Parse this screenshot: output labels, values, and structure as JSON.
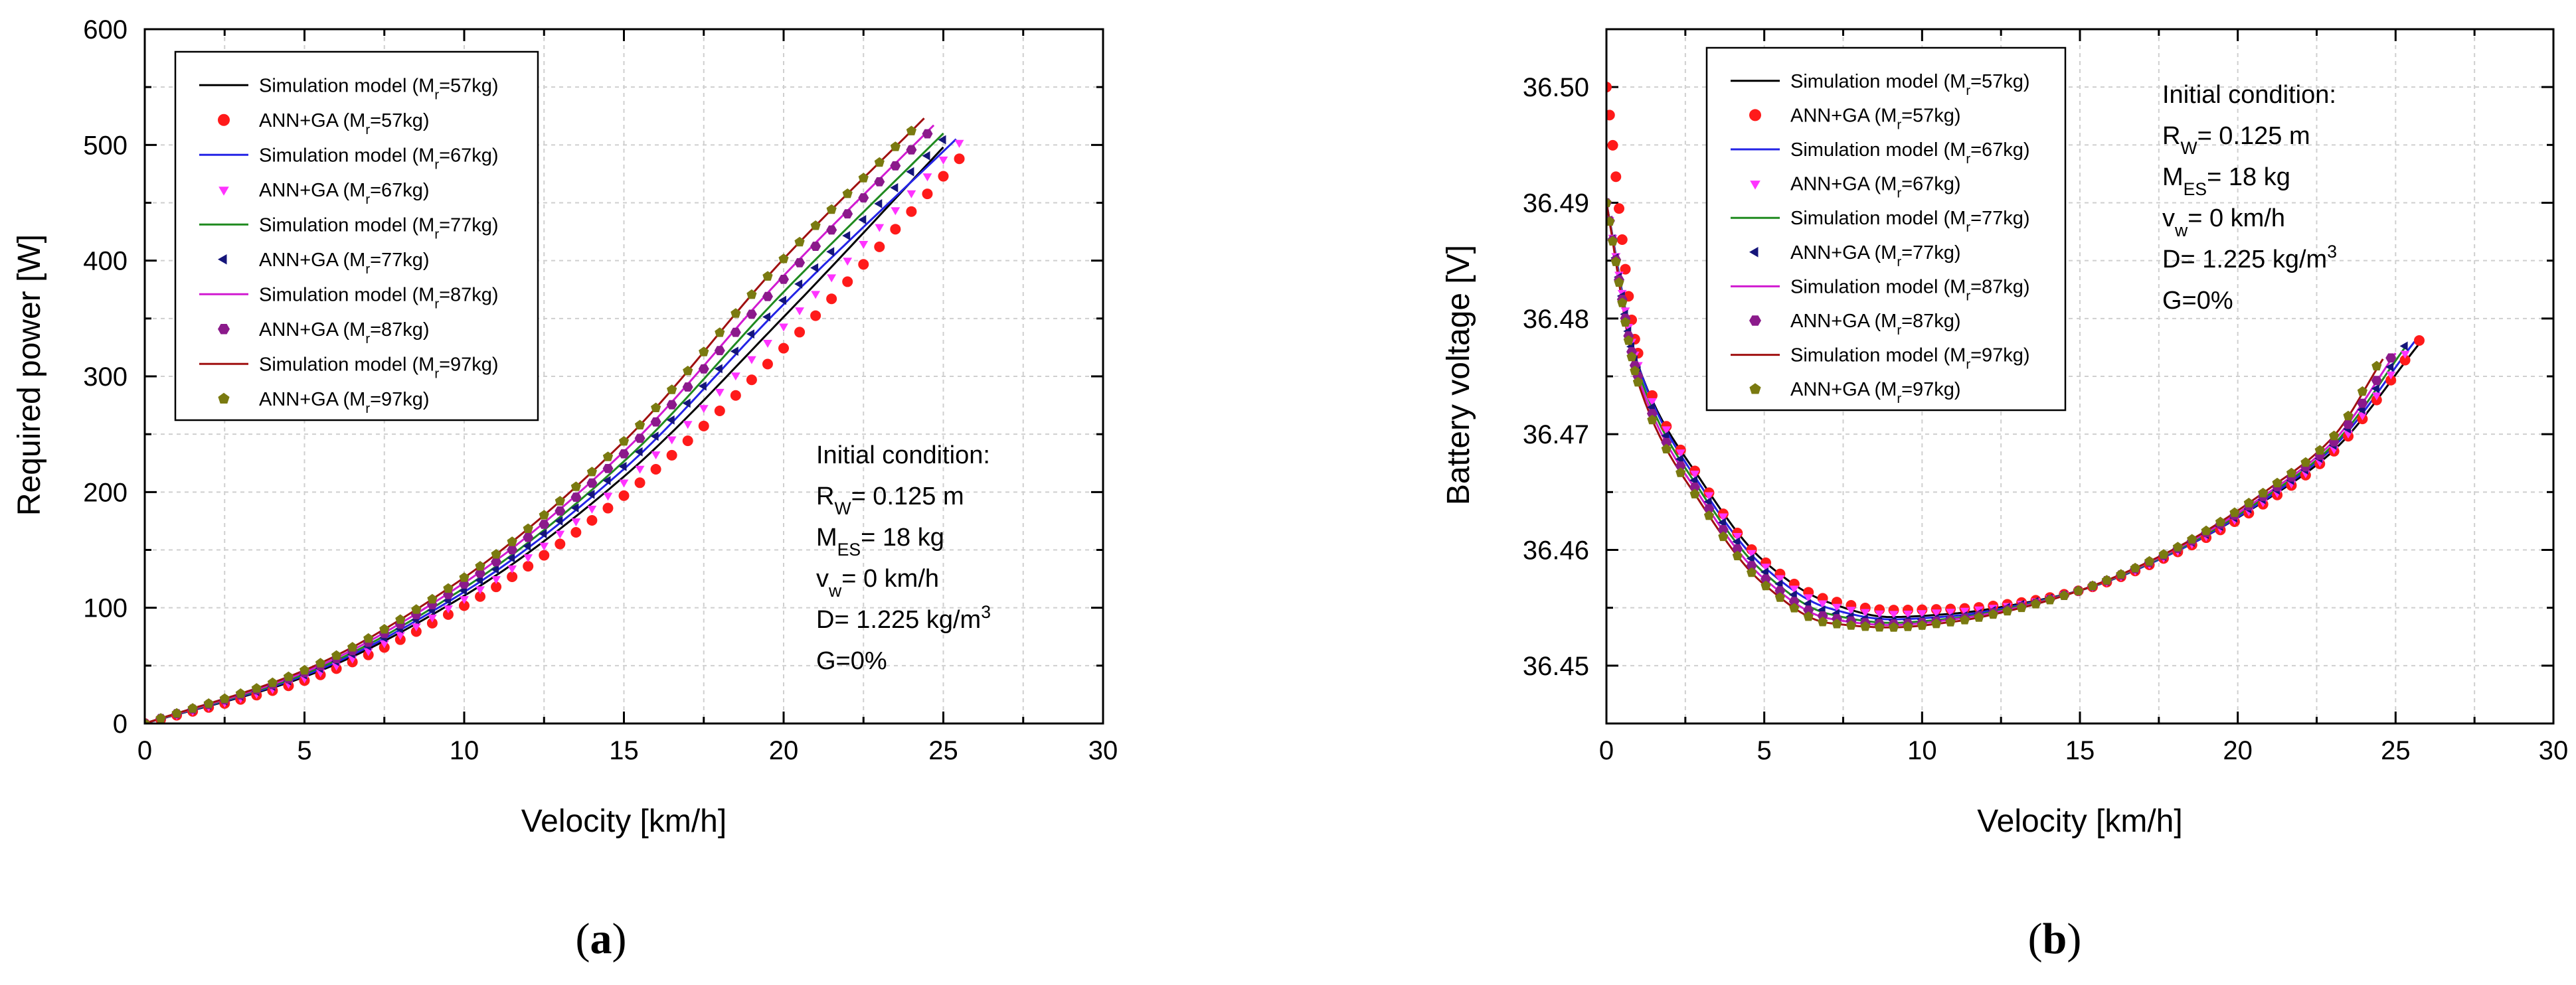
{
  "chart_data": [
    {
      "type": "line",
      "caption_letter": "a",
      "xlabel": "Velocity [km/h]",
      "ylabel": "Required power [W]",
      "xlim": [
        0,
        30
      ],
      "ylim": [
        0,
        600
      ],
      "xticks": [
        "0",
        "5",
        "10",
        "15",
        "20",
        "25",
        "30"
      ],
      "yticks": [
        "0",
        "100",
        "200",
        "300",
        "400",
        "500",
        "600"
      ],
      "grid": true,
      "legend_position": "top-left",
      "annotation_position": "bottom-right",
      "annotation": [
        {
          "main": "Initial condition:"
        },
        {
          "main": "R",
          "sub": "W",
          "rest": "= 0.125 m"
        },
        {
          "main": "M",
          "sub": "ES",
          "rest": "= 18 kg"
        },
        {
          "main": "v",
          "sub": "w",
          "rest": "= 0 km/h"
        },
        {
          "main": "D= 1.225 kg/m",
          "sup": "3"
        },
        {
          "main": "G=0%"
        }
      ],
      "legend": [
        {
          "kind": "line",
          "label": "Simulation model (M",
          "sub": "r",
          "rest": "=57kg)",
          "color": "#000000"
        },
        {
          "kind": "marker",
          "marker": "circle",
          "label": "ANN+GA (M",
          "sub": "r",
          "rest": "=57kg)",
          "color": "#ff1a1a"
        },
        {
          "kind": "line",
          "label": "Simulation model (M",
          "sub": "r",
          "rest": "=67kg)",
          "color": "#2323e6"
        },
        {
          "kind": "marker",
          "marker": "triangle-down",
          "label": "ANN+GA (M",
          "sub": "r",
          "rest": "=67kg)",
          "color": "#ff33ff"
        },
        {
          "kind": "line",
          "label": "Simulation model (M",
          "sub": "r",
          "rest": "=77kg)",
          "color": "#1f8a1f"
        },
        {
          "kind": "marker",
          "marker": "triangle-left",
          "label": "ANN+GA (M",
          "sub": "r",
          "rest": "=77kg)",
          "color": "#15157a"
        },
        {
          "kind": "line",
          "label": "Simulation model (M",
          "sub": "r",
          "rest": "=87kg)",
          "color": "#d11ad1"
        },
        {
          "kind": "marker",
          "marker": "hexagon",
          "label": "ANN+GA (M",
          "sub": "r",
          "rest": "=87kg)",
          "color": "#8b1a8b"
        },
        {
          "kind": "line",
          "label": "Simulation model (M",
          "sub": "r",
          "rest": "=97kg)",
          "color": "#a01010"
        },
        {
          "kind": "marker",
          "marker": "pentagon",
          "label": "ANN+GA (M",
          "sub": "r",
          "rest": "=97kg)",
          "color": "#7a7a10"
        }
      ],
      "series": [
        {
          "label_ref": 0,
          "kind": "line",
          "color": "#000000",
          "x": [
            0,
            5,
            10,
            15,
            20,
            25.0
          ],
          "y": [
            0,
            40.3,
            110.4,
            213.4,
            351.3,
            498
          ]
        },
        {
          "label_ref": 1,
          "kind": "marker",
          "marker": "circle",
          "color": "#ff1a1a",
          "x": [
            0,
            5,
            10,
            15,
            20,
            25.9
          ],
          "y": [
            0,
            37.1,
            101.8,
            196.9,
            324.3,
            500
          ]
        },
        {
          "label_ref": 2,
          "kind": "line",
          "color": "#2323e6",
          "x": [
            0,
            5,
            10,
            15,
            20,
            25.4
          ],
          "y": [
            0,
            41.5,
            113.7,
            219.9,
            362.2,
            505
          ]
        },
        {
          "label_ref": 3,
          "kind": "marker",
          "marker": "triangle-down",
          "color": "#ff33ff",
          "x": [
            0,
            5,
            10,
            15,
            20,
            25.6
          ],
          "y": [
            0,
            39.3,
            107.8,
            208.5,
            343.3,
            505
          ]
        },
        {
          "label_ref": 4,
          "kind": "line",
          "color": "#1f8a1f",
          "x": [
            0,
            5,
            10,
            15,
            20,
            25.0
          ],
          "y": [
            0,
            42.8,
            117.1,
            226.5,
            372.9,
            510
          ]
        },
        {
          "label_ref": 5,
          "kind": "marker",
          "marker": "triangle-left",
          "color": "#15157a",
          "x": [
            0,
            5,
            10,
            15,
            20,
            25.2
          ],
          "y": [
            0,
            41.9,
            114.8,
            222.1,
            365.7,
            510
          ]
        },
        {
          "label_ref": 6,
          "kind": "line",
          "color": "#d11ad1",
          "x": [
            0,
            5,
            10,
            15,
            20,
            24.7
          ],
          "y": [
            0,
            44.3,
            121.5,
            235.0,
            386.9,
            517
          ]
        },
        {
          "label_ref": 7,
          "kind": "marker",
          "marker": "hexagon",
          "color": "#8b1a8b",
          "x": [
            0,
            5,
            10,
            15,
            20,
            24.8
          ],
          "y": [
            0,
            44.0,
            120.5,
            233.1,
            383.8,
            518
          ]
        },
        {
          "label_ref": 8,
          "kind": "line",
          "color": "#a01010",
          "x": [
            0,
            5,
            10,
            15,
            20,
            24.4
          ],
          "y": [
            0,
            46.0,
            126.1,
            243.8,
            401.5,
            523
          ]
        },
        {
          "label_ref": 9,
          "kind": "marker",
          "marker": "pentagon",
          "color": "#7a7a10",
          "x": [
            0,
            5,
            10,
            15,
            20,
            24.4
          ],
          "y": [
            0,
            46.0,
            126.1,
            243.8,
            401.5,
            523
          ]
        }
      ]
    },
    {
      "type": "line",
      "caption_letter": "b",
      "xlabel": "Velocity [km/h]",
      "ylabel": "Battery voltage [V]",
      "xlim": [
        0,
        30
      ],
      "ylim": [
        36.445,
        36.505
      ],
      "xticks": [
        "0",
        "5",
        "10",
        "15",
        "20",
        "25",
        "30"
      ],
      "yticks": [
        "36.45",
        "36.46",
        "36.47",
        "36.48",
        "36.49",
        "36.50"
      ],
      "grid": true,
      "legend_position": "top-left",
      "annotation_position": "top-right",
      "annotation": [
        {
          "main": "Initial condition:"
        },
        {
          "main": "R",
          "sub": "W",
          "rest": "= 0.125 m"
        },
        {
          "main": "M",
          "sub": "ES",
          "rest": "= 18 kg"
        },
        {
          "main": "v",
          "sub": "w",
          "rest": "= 0 km/h"
        },
        {
          "main": "D= 1.225 kg/m",
          "sup": "3"
        },
        {
          "main": "G=0%"
        }
      ],
      "legend": [
        {
          "kind": "line",
          "label": "Simulation model (M",
          "sub": "r",
          "rest": "=57kg)",
          "color": "#000000"
        },
        {
          "kind": "marker",
          "marker": "circle",
          "label": "ANN+GA (M",
          "sub": "r",
          "rest": "=57kg)",
          "color": "#ff1a1a"
        },
        {
          "kind": "line",
          "label": "Simulation model (M",
          "sub": "r",
          "rest": "=67kg)",
          "color": "#2323e6"
        },
        {
          "kind": "marker",
          "marker": "triangle-down",
          "label": "ANN+GA (M",
          "sub": "r",
          "rest": "=67kg)",
          "color": "#ff33ff"
        },
        {
          "kind": "line",
          "label": "Simulation model (M",
          "sub": "r",
          "rest": "=77kg)",
          "color": "#1f8a1f"
        },
        {
          "kind": "marker",
          "marker": "triangle-left",
          "label": "ANN+GA (M",
          "sub": "r",
          "rest": "=77kg)",
          "color": "#15157a"
        },
        {
          "kind": "line",
          "label": "Simulation model (M",
          "sub": "r",
          "rest": "=87kg)",
          "color": "#d11ad1"
        },
        {
          "kind": "marker",
          "marker": "hexagon",
          "label": "ANN+GA (M",
          "sub": "r",
          "rest": "=87kg)",
          "color": "#8b1a8b"
        },
        {
          "kind": "line",
          "label": "Simulation model (M",
          "sub": "r",
          "rest": "=97kg)",
          "color": "#a01010"
        },
        {
          "kind": "marker",
          "marker": "pentagon",
          "label": "ANN+GA (M",
          "sub": "r",
          "rest": "=97kg)",
          "color": "#7a7a10"
        }
      ],
      "series": [
        {
          "label_ref": 0,
          "kind": "line",
          "color": "#000000",
          "x": [
            0,
            1,
            3,
            5,
            7,
            9,
            11,
            13,
            15,
            18,
            21,
            23,
            25.8
          ],
          "y": [
            36.49,
            36.476,
            36.466,
            36.459,
            36.4555,
            36.4542,
            36.4545,
            36.4553,
            36.4565,
            36.4598,
            36.4645,
            36.4685,
            36.478
          ]
        },
        {
          "label_ref": 1,
          "kind": "marker",
          "marker": "circle",
          "color": "#ff1a1a",
          "x": [
            0,
            1,
            3,
            5,
            7,
            9,
            11,
            13,
            15,
            18,
            21,
            23,
            26.0
          ],
          "y": [
            36.5,
            36.477,
            36.466,
            36.459,
            36.4557,
            36.4548,
            36.4549,
            36.4554,
            36.4565,
            36.4597,
            36.4643,
            36.4684,
            36.479
          ]
        },
        {
          "label_ref": 2,
          "kind": "line",
          "color": "#2323e6",
          "x": [
            0,
            1,
            3,
            5,
            7,
            9,
            11,
            13,
            15,
            18,
            21,
            23,
            25.6
          ],
          "y": [
            36.49,
            36.476,
            36.4655,
            36.4585,
            36.455,
            36.454,
            36.4543,
            36.4552,
            36.4565,
            36.4598,
            36.4646,
            36.4688,
            36.478
          ]
        },
        {
          "label_ref": 3,
          "kind": "marker",
          "marker": "triangle-down",
          "color": "#ff33ff",
          "x": [
            0,
            1,
            3,
            5,
            7,
            9,
            11,
            13,
            15,
            18,
            21,
            23,
            25.7
          ],
          "y": [
            36.49,
            36.476,
            36.4658,
            36.4587,
            36.4553,
            36.4545,
            36.4547,
            36.4553,
            36.4565,
            36.4598,
            36.4645,
            36.4686,
            36.4785
          ]
        },
        {
          "label_ref": 4,
          "kind": "line",
          "color": "#1f8a1f",
          "x": [
            0,
            1,
            3,
            5,
            7,
            9,
            11,
            13,
            15,
            18,
            21,
            23,
            25.3
          ],
          "y": [
            36.49,
            36.4755,
            36.465,
            36.458,
            36.4545,
            36.4537,
            36.4541,
            36.4551,
            36.4565,
            36.4599,
            36.4648,
            36.469,
            36.4775
          ]
        },
        {
          "label_ref": 5,
          "kind": "marker",
          "marker": "triangle-left",
          "color": "#15157a",
          "x": [
            0,
            1,
            3,
            5,
            7,
            9,
            11,
            13,
            15,
            18,
            21,
            23,
            25.4
          ],
          "y": [
            36.49,
            36.4755,
            36.4652,
            36.4582,
            36.4547,
            36.4539,
            36.4542,
            36.4552,
            36.4565,
            36.4599,
            36.4647,
            36.4689,
            36.478
          ]
        },
        {
          "label_ref": 6,
          "kind": "line",
          "color": "#d11ad1",
          "x": [
            0,
            1,
            3,
            5,
            7,
            9,
            11,
            13,
            15,
            18,
            21,
            23,
            25.0
          ],
          "y": [
            36.49,
            36.475,
            36.4645,
            36.4575,
            36.4541,
            36.4535,
            36.454,
            36.455,
            36.4565,
            36.46,
            36.465,
            36.4693,
            36.477
          ]
        },
        {
          "label_ref": 7,
          "kind": "marker",
          "marker": "hexagon",
          "color": "#8b1a8b",
          "x": [
            0,
            1,
            3,
            5,
            7,
            9,
            11,
            13,
            15,
            18,
            21,
            23,
            25.0
          ],
          "y": [
            36.49,
            36.475,
            36.4646,
            36.4576,
            36.4542,
            36.4536,
            36.454,
            36.455,
            36.4565,
            36.46,
            36.465,
            36.4692,
            36.4772
          ]
        },
        {
          "label_ref": 8,
          "kind": "line",
          "color": "#a01010",
          "x": [
            0,
            1,
            3,
            5,
            7,
            9,
            11,
            13,
            15,
            18,
            21,
            23,
            24.6
          ],
          "y": [
            36.49,
            36.4745,
            36.464,
            36.457,
            36.4537,
            36.4533,
            36.4538,
            36.4549,
            36.4565,
            36.4601,
            36.4653,
            36.4697,
            36.4765
          ]
        },
        {
          "label_ref": 9,
          "kind": "marker",
          "marker": "pentagon",
          "color": "#7a7a10",
          "x": [
            0,
            1,
            3,
            5,
            7,
            9,
            11,
            13,
            15,
            18,
            21,
            23,
            24.6
          ],
          "y": [
            36.49,
            36.4745,
            36.464,
            36.457,
            36.4537,
            36.4533,
            36.4538,
            36.4549,
            36.4565,
            36.4601,
            36.4653,
            36.4697,
            36.4768
          ]
        }
      ]
    }
  ]
}
